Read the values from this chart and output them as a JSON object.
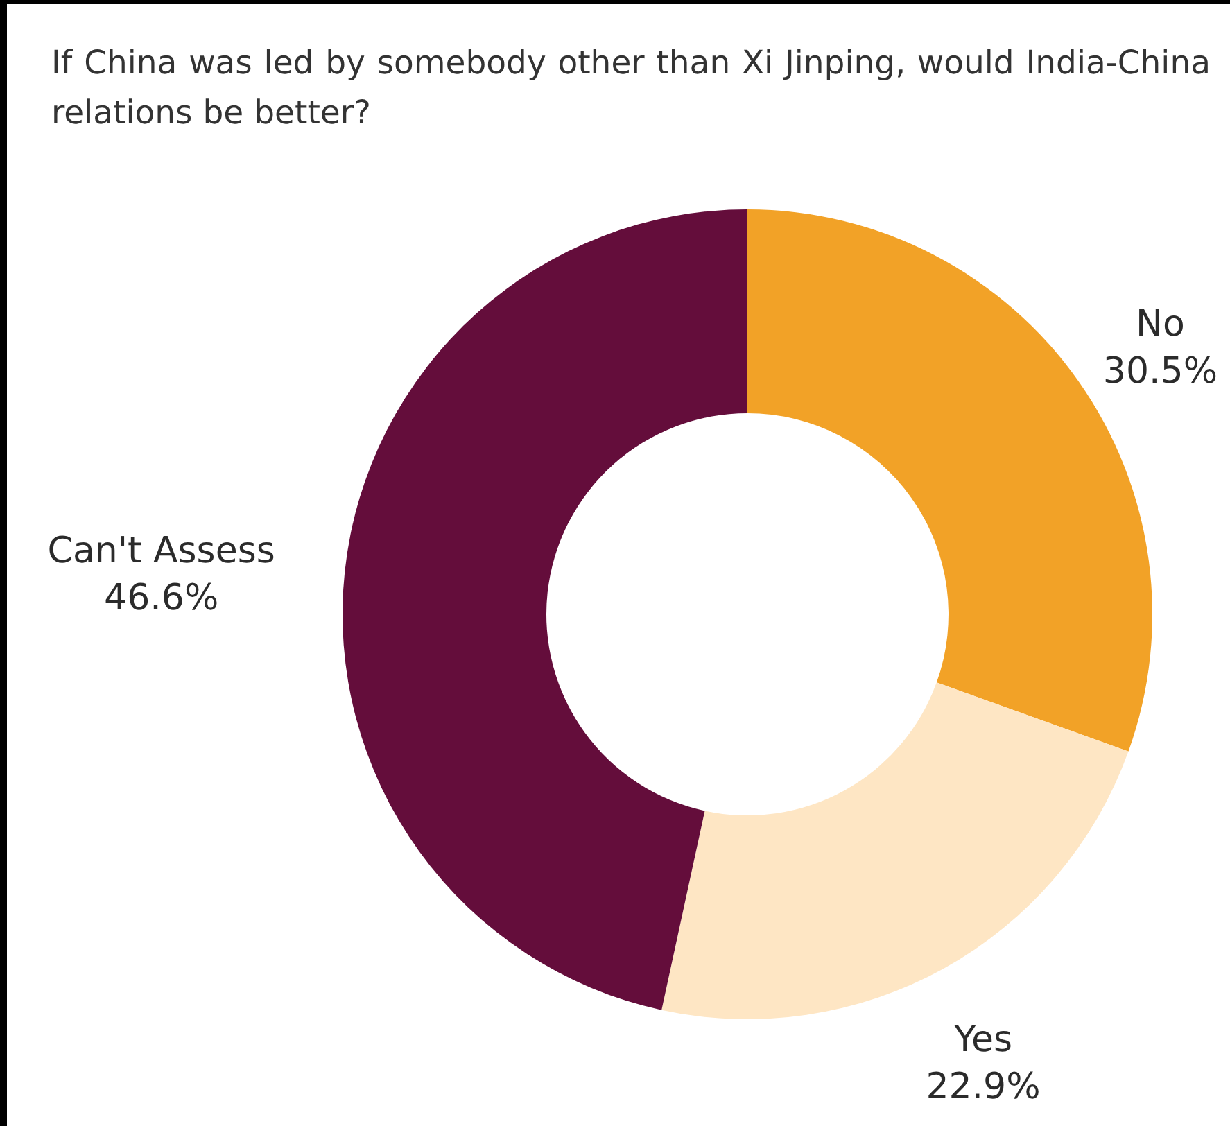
{
  "chart_data": {
    "type": "donut",
    "title": "If China was led by somebody other than Xi Jinping, would India-China relations be better?",
    "categories": [
      "No",
      "Yes",
      "Can't Assess"
    ],
    "values": [
      30.5,
      22.9,
      46.6
    ],
    "colors": [
      "#f2a227",
      "#fee6c4",
      "#640d3b"
    ],
    "value_labels": [
      "30.5%",
      "22.9%",
      "46.6%"
    ]
  }
}
